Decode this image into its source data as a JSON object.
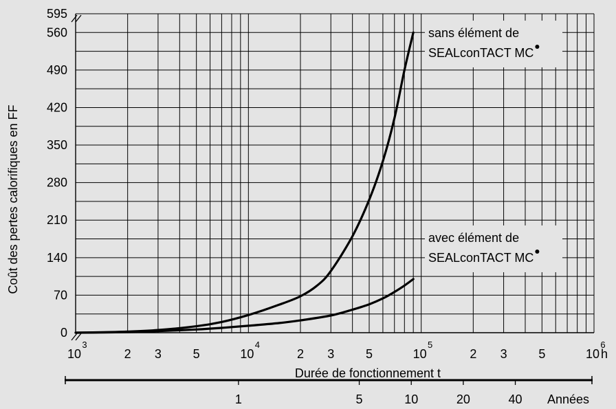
{
  "chart_data": {
    "type": "line",
    "title": "",
    "ylabel": "Coût des pertes calorifiques en FF",
    "xlabel": "Durée de fonctionnement  t",
    "x_unit": "h",
    "x_scale": "log",
    "xlim": [
      1000,
      1000000
    ],
    "ylim": [
      0,
      595
    ],
    "y_ticks": [
      0,
      70,
      140,
      210,
      280,
      350,
      420,
      490,
      560,
      595
    ],
    "y_tick_labels": [
      "0",
      "70",
      "140",
      "210",
      "280",
      "350",
      "420",
      "490",
      "560",
      "595"
    ],
    "x_major_ticks": [
      {
        "value": 1000,
        "base": "10",
        "exp": "3"
      },
      {
        "value": 10000,
        "base": "10",
        "exp": "4"
      },
      {
        "value": 100000,
        "base": "10",
        "exp": "5"
      },
      {
        "value": 1000000,
        "base": "10",
        "exp": "6"
      }
    ],
    "x_minor_labels": [
      "2",
      "3",
      "5"
    ],
    "secondary_axis": {
      "label": "Années",
      "ticks": [
        {
          "label": "1",
          "hours": 8760
        },
        {
          "label": "5",
          "hours": 43800
        },
        {
          "label": "10",
          "hours": 87600
        },
        {
          "label": "20",
          "hours": 175200
        },
        {
          "label": "40",
          "hours": 350400
        }
      ]
    },
    "series": [
      {
        "name": "sans élément de SEALconTACT MC®",
        "name_lines": [
          "sans élément de",
          "SEALconTACT MC"
        ],
        "x": [
          1000,
          1500,
          2000,
          3000,
          5000,
          7000,
          10000,
          15000,
          20000,
          25000,
          30000,
          40000,
          50000,
          60000,
          70000,
          80000,
          90000
        ],
        "y": [
          0,
          1,
          2,
          5,
          12,
          20,
          33,
          52,
          68,
          88,
          115,
          180,
          248,
          320,
          400,
          490,
          560
        ]
      },
      {
        "name": "avec élément de SEALconTACT MC®",
        "name_lines": [
          "avec élément de",
          "SEALconTACT MC"
        ],
        "x": [
          1000,
          2000,
          3000,
          5000,
          7000,
          10000,
          15000,
          20000,
          30000,
          40000,
          50000,
          60000,
          70000,
          80000,
          90000
        ],
        "y": [
          0,
          1,
          3,
          6,
          9,
          13,
          18,
          23,
          32,
          43,
          53,
          64,
          76,
          88,
          100
        ]
      }
    ],
    "axis_break_marks": true
  }
}
